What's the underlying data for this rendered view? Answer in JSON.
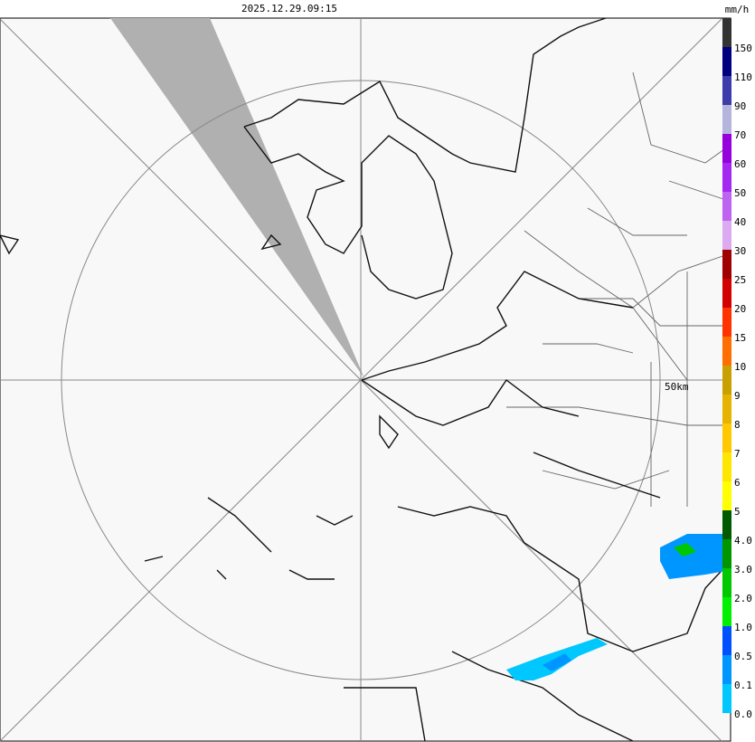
{
  "header": {
    "timestamp": "2025.12.29.09:15",
    "unit": "mm/h"
  },
  "map": {
    "range_label": "50km"
  },
  "legend": {
    "items": [
      {
        "color": "#333333",
        "label": "150"
      },
      {
        "color": "#000080",
        "label": "110"
      },
      {
        "color": "#3c3caa",
        "label": "90"
      },
      {
        "color": "#b4b4dc",
        "label": "70"
      },
      {
        "color": "#9600dc",
        "label": "60"
      },
      {
        "color": "#a428f0",
        "label": "50"
      },
      {
        "color": "#be64f0",
        "label": "40"
      },
      {
        "color": "#dcaaf0",
        "label": "30"
      },
      {
        "color": "#a00000",
        "label": "25"
      },
      {
        "color": "#d20000",
        "label": "20"
      },
      {
        "color": "#ff3200",
        "label": "15"
      },
      {
        "color": "#ff6e00",
        "label": "10"
      },
      {
        "color": "#c8a000",
        "label": "9"
      },
      {
        "color": "#e6b400",
        "label": "8"
      },
      {
        "color": "#ffc800",
        "label": "7"
      },
      {
        "color": "#ffe600",
        "label": "6"
      },
      {
        "color": "#ffff00",
        "label": "5"
      },
      {
        "color": "#005a00",
        "label": "4.0"
      },
      {
        "color": "#009600",
        "label": "3.0"
      },
      {
        "color": "#00c800",
        "label": "2.0"
      },
      {
        "color": "#00f000",
        "label": "1.0"
      },
      {
        "color": "#0050ff",
        "label": "0.5"
      },
      {
        "color": "#0096ff",
        "label": "0.1"
      },
      {
        "color": "#00c8ff",
        "label": "0.0"
      }
    ]
  }
}
